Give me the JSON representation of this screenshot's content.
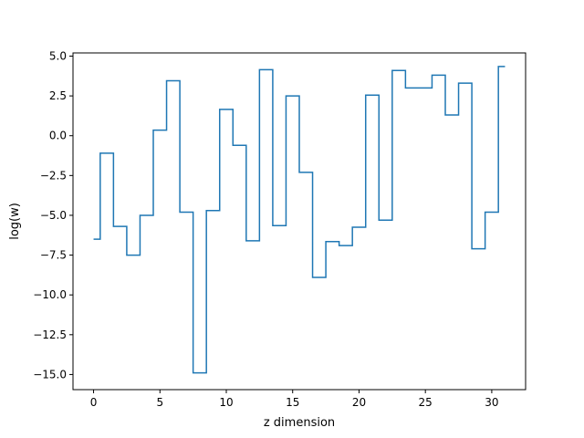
{
  "chart_data": {
    "type": "line",
    "drawstyle": "steps-mid",
    "title": "",
    "xlabel": "z dimension",
    "ylabel": "log(w)",
    "xlim": [
      -1.55,
      32.55
    ],
    "ylim": [
      -15.95,
      5.2
    ],
    "grid": false,
    "legend": "none",
    "x_ticks": [
      0,
      5,
      10,
      15,
      20,
      25,
      30
    ],
    "x_tick_labels": [
      "0",
      "5",
      "10",
      "15",
      "20",
      "25",
      "30"
    ],
    "y_ticks": [
      5.0,
      2.5,
      0.0,
      -2.5,
      -5.0,
      -7.5,
      -10.0,
      -12.5,
      -15.0
    ],
    "y_tick_labels": [
      "5.0",
      "2.5",
      "0.0",
      "−2.5",
      "−5.0",
      "−7.5",
      "−10.0",
      "−12.5",
      "−15.0"
    ],
    "series": [
      {
        "color": "#1f77b4",
        "x": [
          0,
          1,
          2,
          3,
          4,
          5,
          6,
          7,
          8,
          9,
          10,
          11,
          12,
          13,
          14,
          15,
          16,
          17,
          18,
          19,
          20,
          21,
          22,
          23,
          24,
          25,
          26,
          27,
          28,
          29,
          30,
          31
        ],
        "values": [
          -6.5,
          -1.1,
          -5.7,
          -7.5,
          -5.0,
          0.35,
          3.45,
          -4.8,
          -14.9,
          -4.7,
          1.65,
          -0.6,
          -6.6,
          4.15,
          -5.65,
          2.5,
          -2.3,
          -8.9,
          -6.65,
          -6.9,
          -5.75,
          2.55,
          -5.3,
          4.1,
          3.0,
          3.0,
          3.8,
          1.3,
          3.3,
          -7.1,
          -4.8,
          4.35
        ]
      }
    ]
  }
}
